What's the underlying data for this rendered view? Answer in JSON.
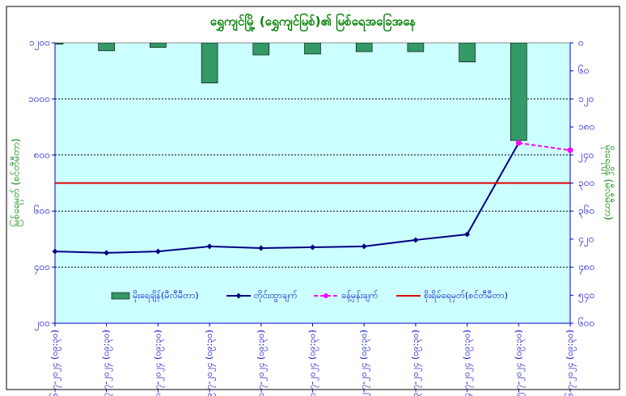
{
  "chart_data": {
    "type": "combo",
    "title": "ရွှေကျင်မြို့ (ရွှေကျင်မြစ်)၏ မြစ်ရေအခြေအနေ",
    "y_label": "မြစ်ရေမှတ် (စင်တီမီတာ)",
    "y2_label": "မိုးရေချိန် (မီလီမီတာ)",
    "categories": [
      "၁၆-၇-၂၀၂၄ (၀၉:၃၀)",
      "၁၇-၇-၂၀၂၄ (၀၉:၃၀)",
      "၁၈-၇-၂၀၂၄ (၀၉:၃၀)",
      "၁၉-၇-၂၀၂၄ (၀၉:၃၀)",
      "၂၀-၇-၂၀၂၄ (၀၉:၃၀)",
      "၂၁-၇-၂၀၂၄ (၀၉:၃၀)",
      "၂၂-၇-၂၀၂၄ (၀၉:၃၀)",
      "၂၃-၇-၂၀၂၄ (၀၉:၃၀)",
      "၂၄-၇-၂၀၂၄ (၀၉:၃၀)",
      "၂၅-၇-၂၀၂၄ (၀၉:၃၀)",
      "၂၆-၇-၂၀၂၄ (၀၉:၃၀)"
    ],
    "series": [
      {
        "name": "မိုးရေချိန်(မီလီမီတာ)",
        "kind": "bar",
        "axis": "y2",
        "color": "#339966",
        "values": [
          3,
          17,
          10,
          86,
          26,
          24,
          19,
          19,
          41,
          209,
          null
        ]
      },
      {
        "name": "တိုင်းထွာချက်",
        "kind": "line",
        "color": "#000080",
        "values": [
          456,
          451,
          456,
          474,
          468,
          471,
          474,
          497,
          517,
          843,
          null
        ]
      },
      {
        "name": "ခန့်မှန်းချက်",
        "kind": "dashed-line",
        "color": "#ff00ff",
        "values": [
          null,
          null,
          null,
          null,
          null,
          null,
          null,
          null,
          null,
          843,
          817
        ]
      },
      {
        "name": "စိုးရိမ်ရေမှတ်(စင်တီမီတာ)",
        "kind": "flat-line",
        "color": "#e00000",
        "values": [
          700,
          700,
          700,
          700,
          700,
          700,
          700,
          700,
          700,
          700,
          700
        ]
      }
    ],
    "ylim": [
      200,
      1200
    ],
    "yticks": [
      {
        "value": 200,
        "label": "၂၀၀"
      },
      {
        "value": 400,
        "label": "၄၀၀"
      },
      {
        "value": 600,
        "label": "၆၀၀"
      },
      {
        "value": 800,
        "label": "၈၀၀"
      },
      {
        "value": 1000,
        "label": "၁၀၀၀"
      },
      {
        "value": 1200,
        "label": "၁၂၀၀"
      }
    ],
    "y2lim": [
      0,
      600
    ],
    "y2_inverted": true,
    "y2ticks": [
      {
        "value": 0,
        "label": "၀"
      },
      {
        "value": 60,
        "label": "၆၀"
      },
      {
        "value": 120,
        "label": "၁၂၀"
      },
      {
        "value": 180,
        "label": "၁၈၀"
      },
      {
        "value": 240,
        "label": "၂၄၀"
      },
      {
        "value": 300,
        "label": "၃၀၀"
      },
      {
        "value": 360,
        "label": "၃၆၀"
      },
      {
        "value": 420,
        "label": "၄၂၀"
      },
      {
        "value": 480,
        "label": "၄၈၀"
      },
      {
        "value": 540,
        "label": "၅၄၀"
      },
      {
        "value": 600,
        "label": "၆၀၀"
      }
    ],
    "grid": true
  }
}
